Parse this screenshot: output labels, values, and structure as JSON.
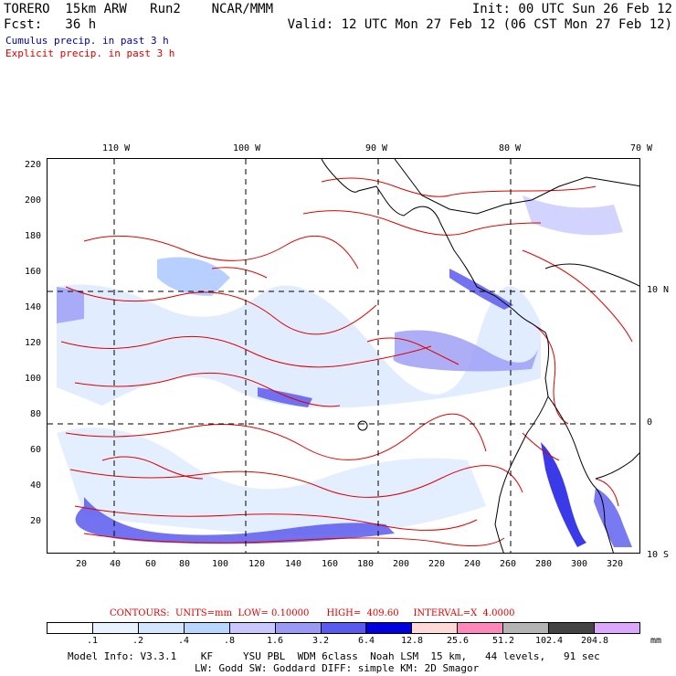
{
  "header": {
    "title_left": "TORERO  15km ARW   Run2    NCAR/MMM",
    "init": "Init: 00 UTC Sun 26 Feb 12",
    "fcst": "Fcst:   36 h",
    "valid": "Valid: 12 UTC Mon 27 Feb 12 (06 CST Mon 27 Feb 12)",
    "cumulus": "Cumulus precip. in past 3 h",
    "explicit": "Explicit precip. in past 3 h"
  },
  "colors": {
    "cumulus_text": "#0000a0",
    "explicit_text": "#e00000",
    "contour": "#e00000",
    "map_lines": "#000000"
  },
  "map": {
    "top_lon_labels": [
      "110 W",
      "100 W",
      "90 W",
      "80 W",
      "70 W"
    ],
    "right_lat_labels": [
      "10 N",
      "0",
      "10 S"
    ],
    "y_ticks": [
      "220",
      "200",
      "180",
      "160",
      "140",
      "120",
      "100",
      "80",
      "60",
      "40",
      "20"
    ],
    "x_ticks": [
      "20",
      "40",
      "60",
      "80",
      "100",
      "120",
      "140",
      "160",
      "180",
      "200",
      "220",
      "240",
      "260",
      "280",
      "300",
      "320"
    ]
  },
  "footer": {
    "contours_line": "CONTOURS:  UNITS=mm  LOW= 0.10000      HIGH=  409.60     INTERVAL=X  4.0000",
    "units": "mm",
    "model_info_1": "Model Info: V3.3.1    KF     YSU PBL  WDM 6class  Noah LSM  15 km,   44 levels,   91 sec",
    "model_info_2": "LW: Godd SW: Goddard DIFF: simple KM: 2D Smagor"
  },
  "colorbar": {
    "labels": [
      ".1",
      ".2",
      ".4",
      ".8",
      "1.6",
      "3.2",
      "6.4",
      "12.8",
      "25.6",
      "51.2",
      "102.4",
      "204.8"
    ],
    "colors": [
      "#ffffff",
      "#e8f3ff",
      "#d2e6ff",
      "#b8d6ff",
      "#c8c8ff",
      "#9a9af5",
      "#5a5aee",
      "#0000dd",
      "#ffd8d8",
      "#ff88bb",
      "#b4b4b4",
      "#444444",
      "#dca8ff"
    ]
  }
}
